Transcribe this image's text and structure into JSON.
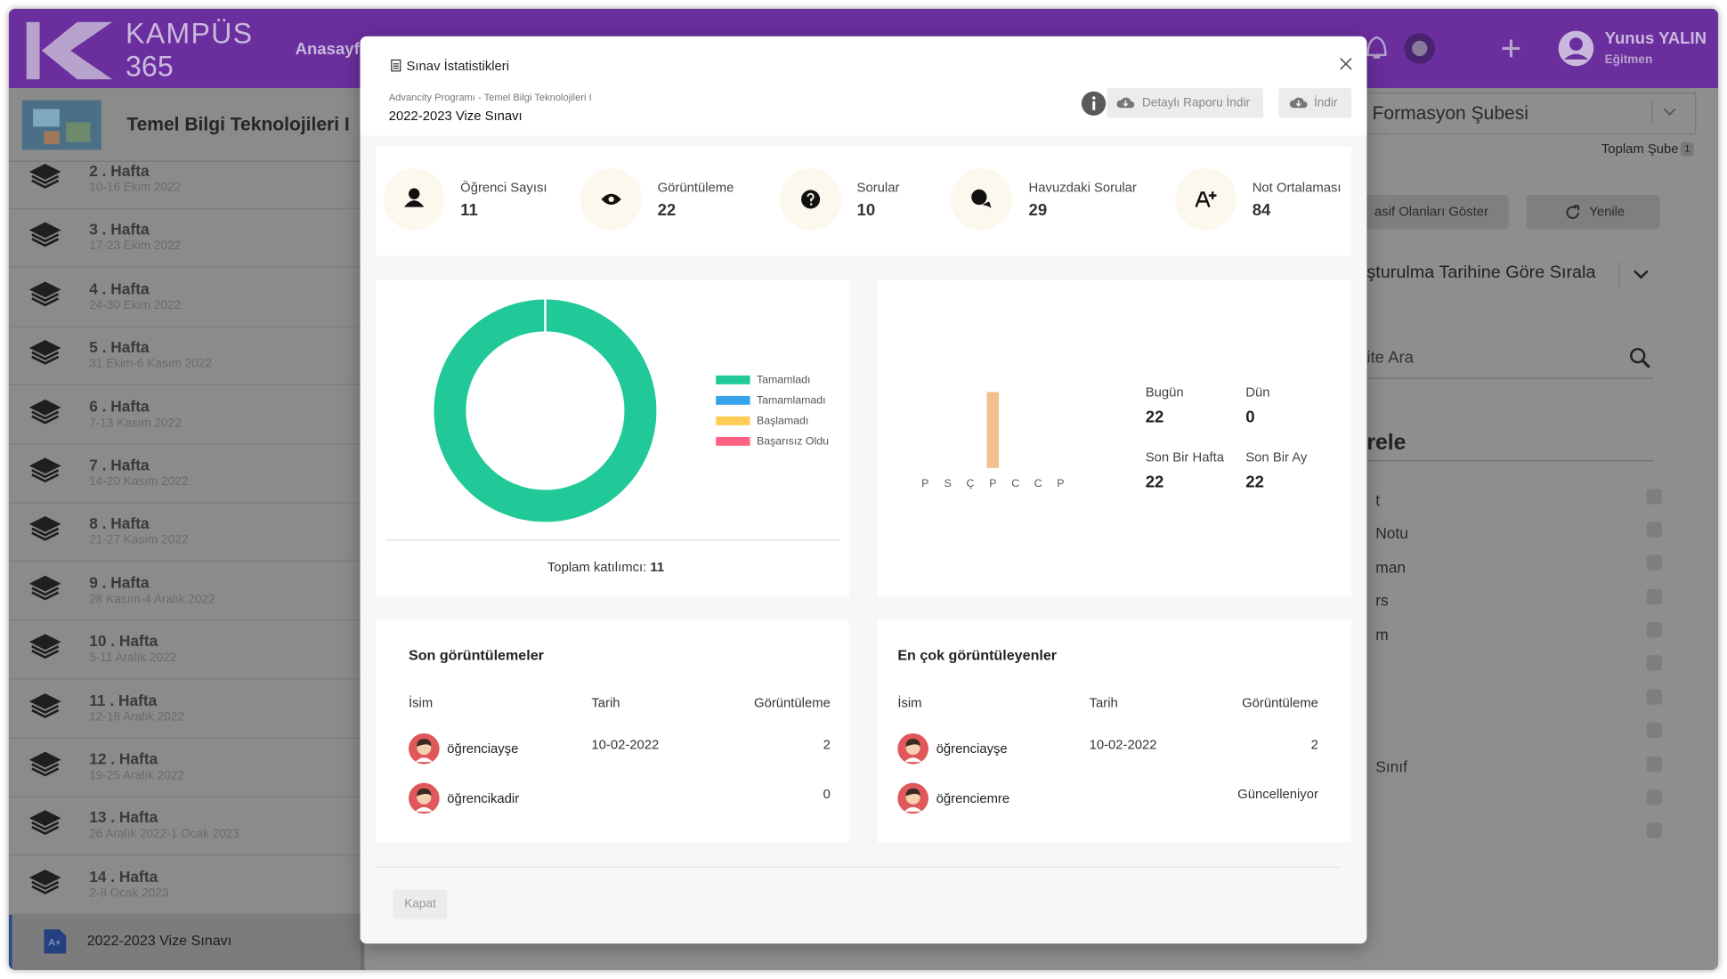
{
  "app": {
    "logo": "KAMPÜS",
    "logo_sub": "365",
    "nav": [
      "Anasayfa"
    ],
    "user": {
      "name": "Yunus YALIN",
      "role": "Eğitmen"
    }
  },
  "course": {
    "title": "Temel Bilgi Teknolojileri I",
    "weeks": [
      {
        "title": "2 . Hafta",
        "dates": "10-16 Ekim 2022"
      },
      {
        "title": "3 . Hafta",
        "dates": "17-23 Ekim 2022"
      },
      {
        "title": "4 . Hafta",
        "dates": "24-30 Ekim 2022"
      },
      {
        "title": "5 . Hafta",
        "dates": "31 Ekim-6 Kasım 2022"
      },
      {
        "title": "6 . Hafta",
        "dates": "7-13 Kasım 2022"
      },
      {
        "title": "7 . Hafta",
        "dates": "14-20 Kasım 2022"
      },
      {
        "title": "8 . Hafta",
        "dates": "21-27 Kasım 2022"
      },
      {
        "title": "9 . Hafta",
        "dates": "28 Kasım-4 Aralık 2022"
      },
      {
        "title": "10 . Hafta",
        "dates": "5-11 Aralık 2022"
      },
      {
        "title": "11 . Hafta",
        "dates": "12-18 Aralık 2022"
      },
      {
        "title": "12 . Hafta",
        "dates": "19-25 Aralık 2022"
      },
      {
        "title": "13 . Hafta",
        "dates": "26 Aralık 2022-1 Ocak 2023"
      },
      {
        "title": "14 . Hafta",
        "dates": "2-8 Ocak 2023"
      }
    ],
    "exam": "2022-2023 Vize Sınavı"
  },
  "background": {
    "branch": "Formasyon Şubesi",
    "total_branch_label": "Toplam Şube",
    "total_branch": 1,
    "show_passive": "asif Olanları Göster",
    "refresh": "Yenile",
    "sort": "şturulma Tarihine Göre Sırala",
    "search": "ite Ara",
    "filter_title": "rele",
    "filter_items": [
      "t",
      "Notu",
      "man",
      "rs",
      "m",
      "Sınıf"
    ]
  },
  "modal": {
    "title": "Sınav İstatistikleri",
    "breadcrumb": "Advancity Programı - Temel Bilgi Teknolojileri I",
    "exam": "2022-2023 Vize Sınavı",
    "report_button": "Detaylı Raporu İndir",
    "download_button": "İndir",
    "close_button": "Kapat",
    "stats": [
      {
        "label": "Öğrenci Sayısı",
        "value": 11
      },
      {
        "label": "Görüntüleme",
        "value": 22
      },
      {
        "label": "Sorular",
        "value": 10
      },
      {
        "label": "Havuzdaki Sorular",
        "value": 29
      },
      {
        "label": "Not Ortalaması",
        "value": 84
      }
    ],
    "completion_chart": {
      "type": "donut",
      "series": [
        {
          "name": "Tamamladı",
          "color": "#20c997",
          "value": 11
        },
        {
          "name": "Tamamlamadı",
          "color": "#36a2eb",
          "value": 0
        },
        {
          "name": "Başlamadı",
          "color": "#ffcd56",
          "value": 0
        },
        {
          "name": "Başarısız Oldu",
          "color": "#ff6384",
          "value": 0
        }
      ],
      "total_label": "Toplam katılımcı:",
      "total": 11
    },
    "views_chart": {
      "type": "bar",
      "categories": [
        "P",
        "S",
        "Ç",
        "P",
        "C",
        "C",
        "P"
      ],
      "values": [
        0,
        0,
        0,
        22,
        0,
        0,
        0
      ],
      "color": "#f2c08e",
      "summary": [
        {
          "label": "Bugün",
          "value": 22
        },
        {
          "label": "Dün",
          "value": 0
        },
        {
          "label": "Son Bir Hafta",
          "value": 22
        },
        {
          "label": "Son Bir Ay",
          "value": 22
        }
      ]
    },
    "recent_views": {
      "title": "Son görüntülemeler",
      "columns": [
        "İsim",
        "Tarih",
        "Görüntüleme"
      ],
      "rows": [
        {
          "name": "öğrenciayşe",
          "date": "10-02-2022",
          "views": 2
        },
        {
          "name": "öğrencikadir",
          "views": 0
        }
      ]
    },
    "top_viewers": {
      "title": "En çok görüntüleyenler",
      "columns": [
        "İsim",
        "Tarih",
        "Görüntüleme"
      ],
      "rows": [
        {
          "name": "öğrenciayşe",
          "date": "10-02-2022",
          "views": 2
        },
        {
          "name": "öğrenciemre",
          "views": "Güncelleniyor"
        }
      ]
    }
  }
}
